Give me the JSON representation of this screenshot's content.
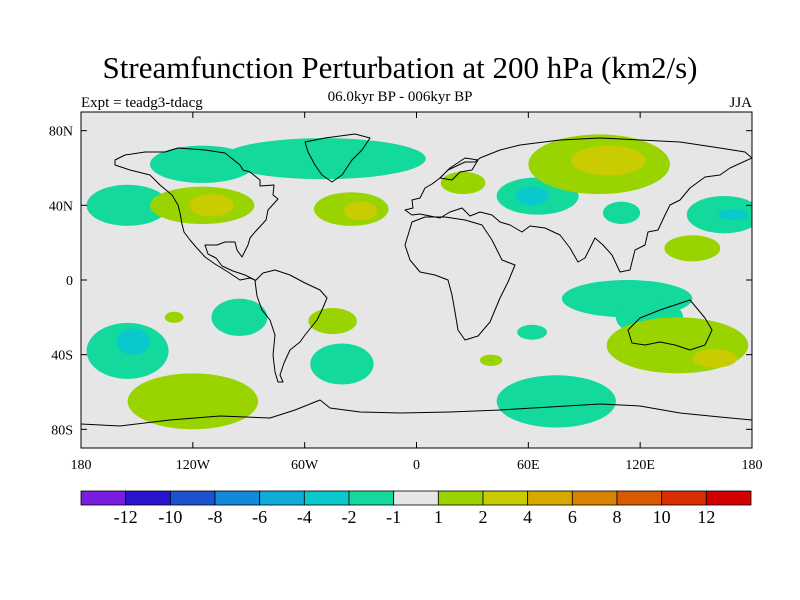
{
  "title": "Streamfunction Perturbation at 200 hPa (km2/s)",
  "subtitle": "06.0kyr BP - 006kyr BP",
  "left_label": "Expt = teadg3-tdacg",
  "right_label": "JJA",
  "lat_labels": [
    "80N",
    "40N",
    "0",
    "40S",
    "80S"
  ],
  "lon_labels": [
    "180",
    "120W",
    "60W",
    "0",
    "60E",
    "120E",
    "180"
  ],
  "colorbar": {
    "labels": [
      "-12",
      "-10",
      "-8",
      "-6",
      "-4",
      "-2",
      "-1",
      "1",
      "2",
      "4",
      "6",
      "8",
      "10",
      "12"
    ],
    "colors": [
      "#7a1de0",
      "#2b14cf",
      "#1a52cf",
      "#128ad9",
      "#10acd8",
      "#0ac9cc",
      "#13d99c",
      "#e6e6e6",
      "#99d400",
      "#c8cc00",
      "#d8a800",
      "#d98200",
      "#d95a00",
      "#d92f00",
      "#d40000"
    ]
  },
  "colors": {
    "background": "#e6e6e6",
    "pos_light": "#99d400",
    "pos_mid": "#c8cc00",
    "neg_light": "#13d99c",
    "neg_mid": "#0ac9cc",
    "neg_strong": "#10acd8"
  },
  "map_data": {
    "lon_range": [
      -180,
      180
    ],
    "lat_range": [
      -90,
      90
    ],
    "anomalies": [
      {
        "lon": -155,
        "lat": 40,
        "rlon": 22,
        "rlat": 11,
        "level": "neg_light"
      },
      {
        "lon": -115,
        "lat": 62,
        "rlon": 28,
        "rlat": 10,
        "level": "neg_light"
      },
      {
        "lon": -115,
        "lat": 40,
        "rlon": 28,
        "rlat": 10,
        "level": "pos_light"
      },
      {
        "lon": -110,
        "lat": 40,
        "rlon": 12,
        "rlat": 6,
        "level": "pos_mid"
      },
      {
        "lon": -50,
        "lat": 65,
        "rlon": 55,
        "rlat": 11,
        "level": "neg_light"
      },
      {
        "lon": -35,
        "lat": 38,
        "rlon": 20,
        "rlat": 9,
        "level": "pos_light"
      },
      {
        "lon": -30,
        "lat": 37,
        "rlon": 9,
        "rlat": 5,
        "level": "pos_mid"
      },
      {
        "lon": 25,
        "lat": 52,
        "rlon": 12,
        "rlat": 6,
        "level": "pos_light"
      },
      {
        "lon": 65,
        "lat": 45,
        "rlon": 22,
        "rlat": 10,
        "level": "neg_light"
      },
      {
        "lon": 62,
        "lat": 45,
        "rlon": 9,
        "rlat": 5,
        "level": "neg_mid"
      },
      {
        "lon": 98,
        "lat": 62,
        "rlon": 38,
        "rlat": 16,
        "level": "pos_light"
      },
      {
        "lon": 103,
        "lat": 64,
        "rlon": 20,
        "rlat": 8,
        "level": "pos_mid"
      },
      {
        "lon": 110,
        "lat": 36,
        "rlon": 10,
        "rlat": 6,
        "level": "neg_light"
      },
      {
        "lon": 148,
        "lat": 17,
        "rlon": 15,
        "rlat": 7,
        "level": "pos_light"
      },
      {
        "lon": 165,
        "lat": 35,
        "rlon": 20,
        "rlat": 10,
        "level": "neg_light"
      },
      {
        "lon": 170,
        "lat": 35,
        "rlon": 8,
        "rlat": 3,
        "level": "neg_mid"
      },
      {
        "lon": -155,
        "lat": -38,
        "rlon": 22,
        "rlat": 15,
        "level": "neg_light"
      },
      {
        "lon": -152,
        "lat": -33,
        "rlon": 9,
        "rlat": 7,
        "level": "neg_mid"
      },
      {
        "lon": -130,
        "lat": -20,
        "rlon": 5,
        "rlat": 3,
        "level": "pos_light"
      },
      {
        "lon": -95,
        "lat": -20,
        "rlon": 15,
        "rlat": 10,
        "level": "neg_light"
      },
      {
        "lon": -45,
        "lat": -22,
        "rlon": 13,
        "rlat": 7,
        "level": "pos_light"
      },
      {
        "lon": -40,
        "lat": -45,
        "rlon": 17,
        "rlat": 11,
        "level": "neg_light"
      },
      {
        "lon": -120,
        "lat": -65,
        "rlon": 35,
        "rlat": 15,
        "level": "pos_light"
      },
      {
        "lon": 40,
        "lat": -43,
        "rlon": 6,
        "rlat": 3,
        "level": "pos_light"
      },
      {
        "lon": 62,
        "lat": -28,
        "rlon": 8,
        "rlat": 4,
        "level": "neg_light"
      },
      {
        "lon": 75,
        "lat": -65,
        "rlon": 32,
        "rlat": 14,
        "level": "neg_light"
      },
      {
        "lon": 113,
        "lat": -10,
        "rlon": 35,
        "rlat": 10,
        "level": "neg_light"
      },
      {
        "lon": 125,
        "lat": -20,
        "rlon": 18,
        "rlat": 10,
        "level": "neg_light"
      },
      {
        "lon": 140,
        "lat": -35,
        "rlon": 38,
        "rlat": 15,
        "level": "pos_light"
      },
      {
        "lon": 160,
        "lat": -42,
        "rlon": 12,
        "rlat": 5,
        "level": "pos_mid"
      }
    ]
  }
}
